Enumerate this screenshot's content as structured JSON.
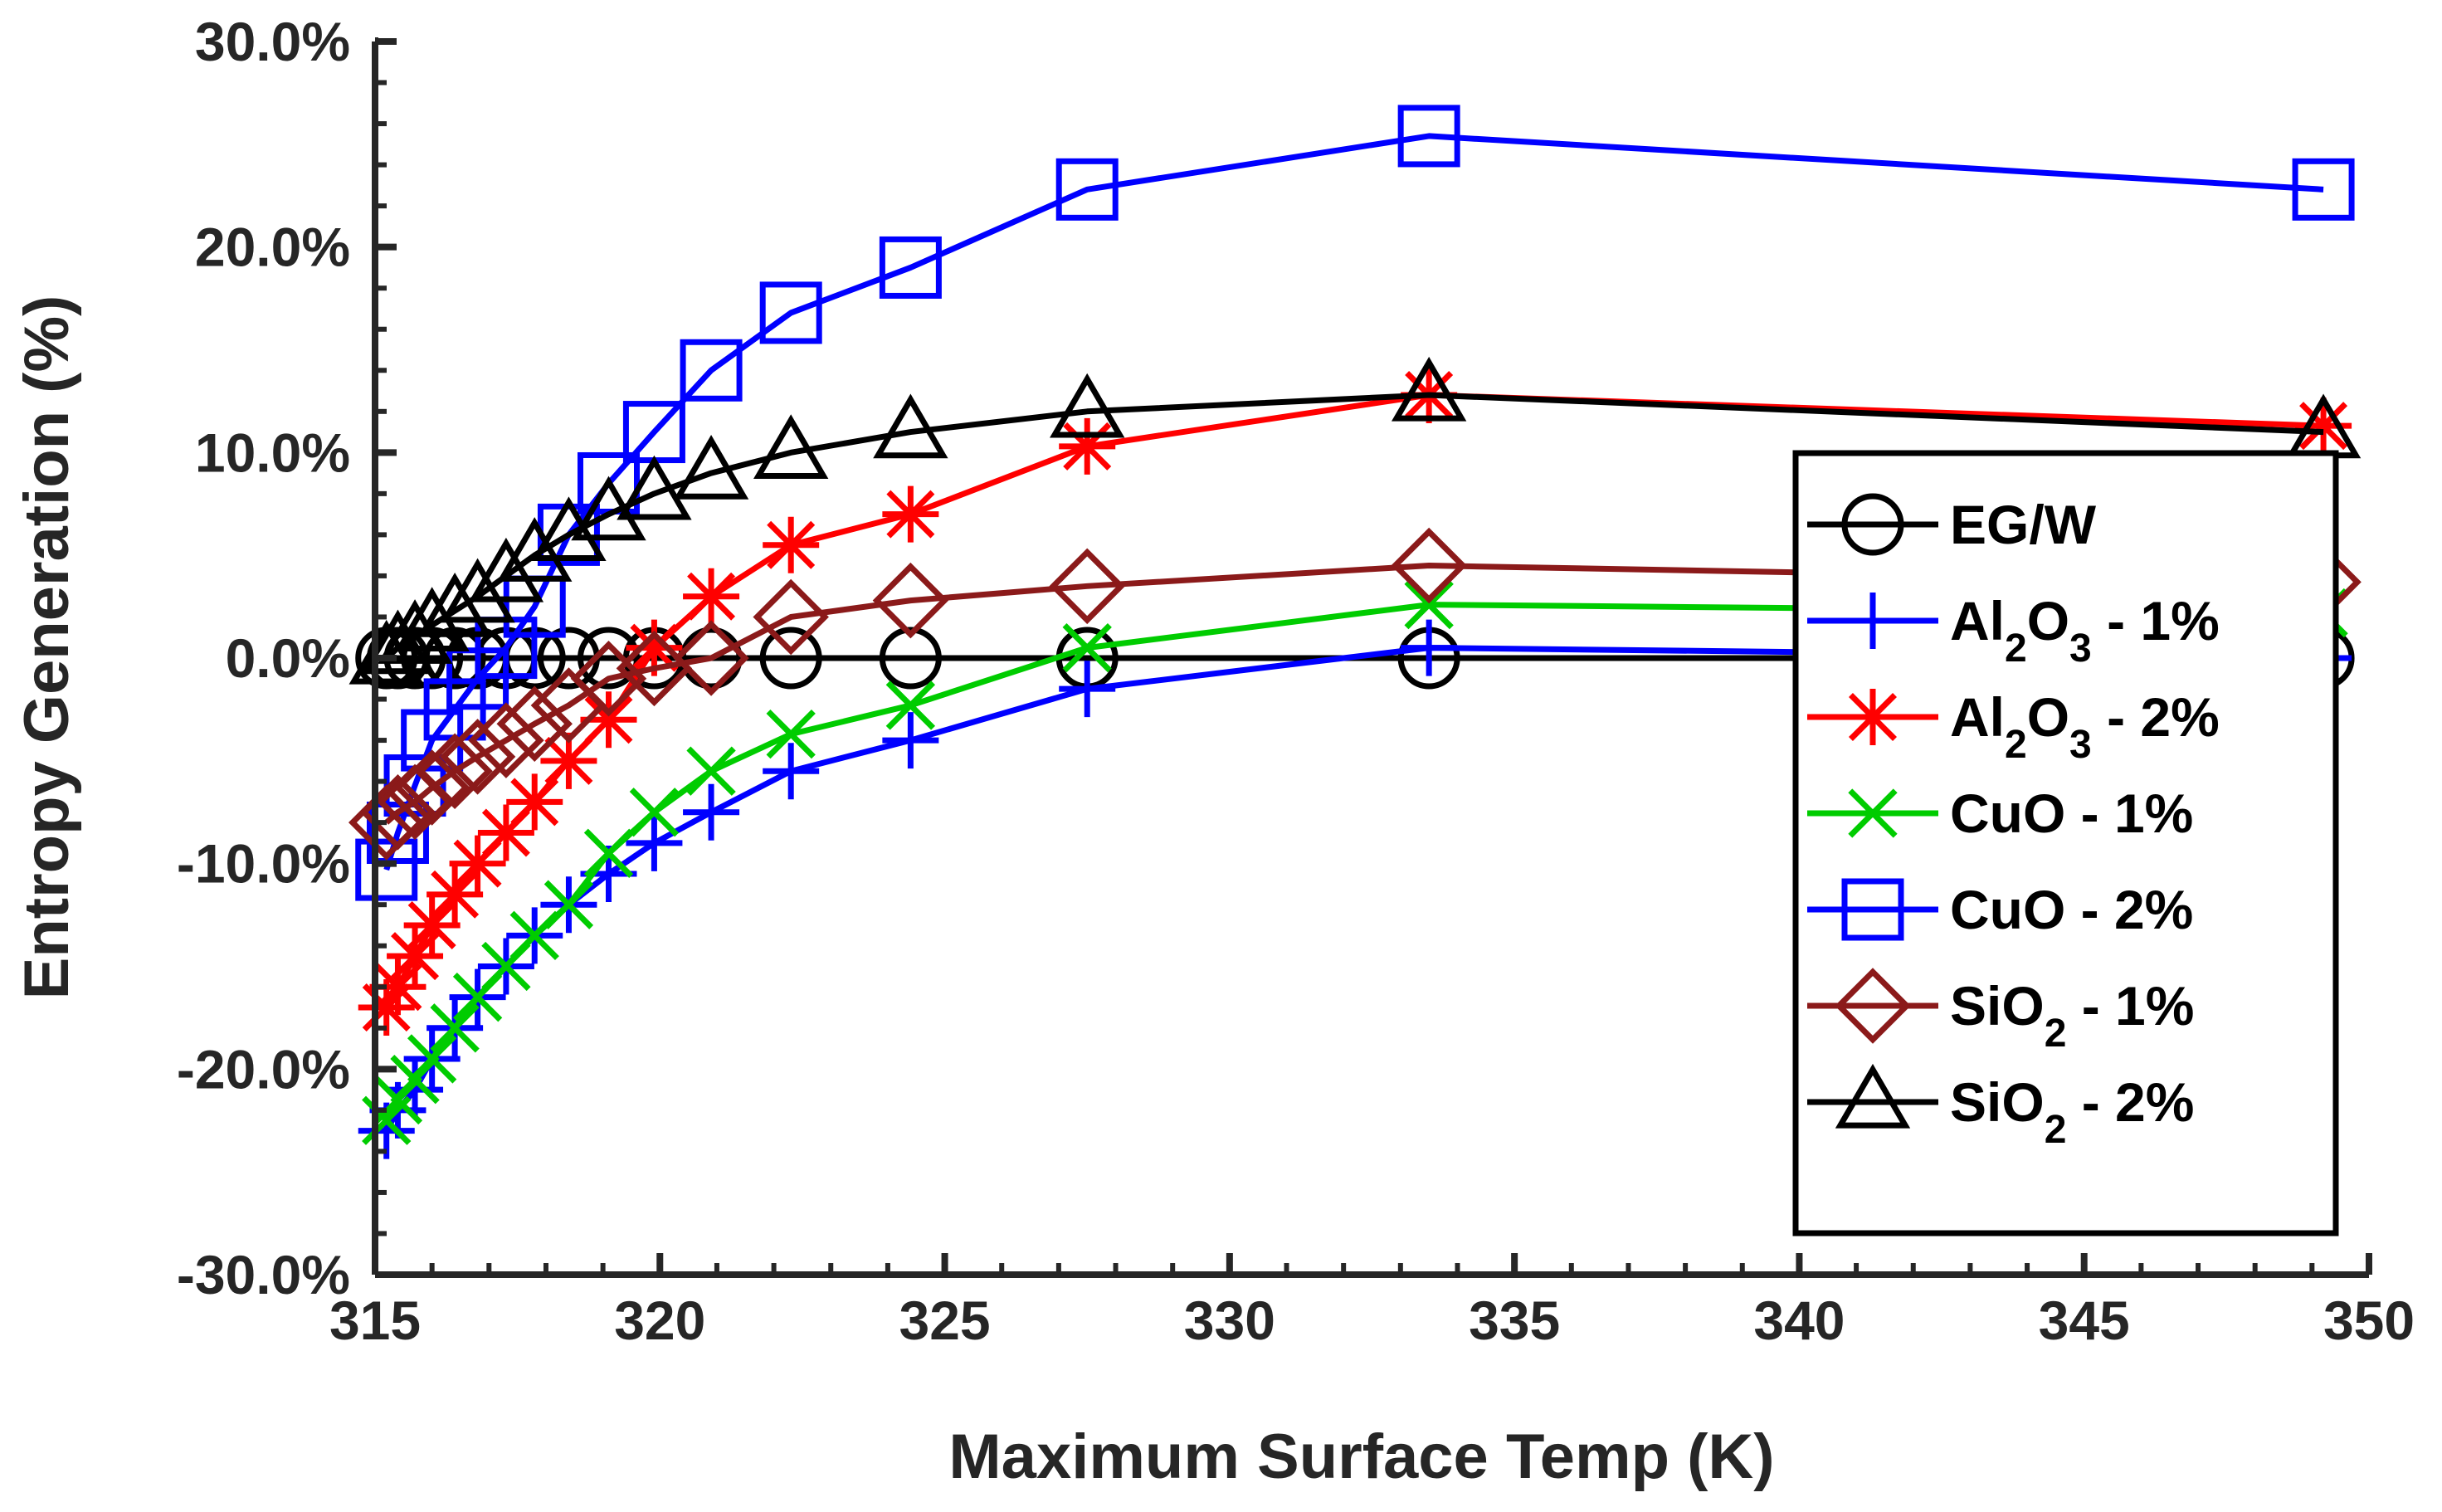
{
  "chart_data": {
    "type": "line",
    "title": "",
    "xlabel": "Maximum Surface Temp (K)",
    "ylabel": "Entropy Generation (%)",
    "xlim": [
      315,
      350
    ],
    "ylim": [
      -30,
      30
    ],
    "xticks": [
      315,
      320,
      325,
      330,
      335,
      340,
      345,
      350
    ],
    "yticks": [
      -30,
      -20,
      -10,
      0,
      10,
      20,
      30
    ],
    "xtick_labels": [
      "315",
      "320",
      "325",
      "330",
      "335",
      "340",
      "345",
      "350"
    ],
    "ytick_labels": [
      "-30.0%",
      "-20.0%",
      "-10.0%",
      "0.0%",
      "10.0%",
      "20.0%",
      "30.0%"
    ],
    "legend_position": "right",
    "grid": false,
    "series": [
      {
        "name": "EG/W",
        "label_main": "EG/W",
        "color": "#000000",
        "marker": "circle",
        "x": [
          315.2,
          315.4,
          315.7,
          316.0,
          316.4,
          316.8,
          317.3,
          317.8,
          318.4,
          319.1,
          319.9,
          320.9,
          322.3,
          324.4,
          327.5,
          333.5,
          349.2
        ],
        "y": [
          0,
          0,
          0,
          0,
          0,
          0,
          0,
          0,
          0,
          0,
          0,
          0,
          0,
          0,
          0,
          0,
          0
        ]
      },
      {
        "name": "Al2O3 - 1%",
        "label_main": "Al",
        "label_sub1": "2",
        "label_mid": "O",
        "label_sub2": "3",
        "label_tail": " - 1%",
        "color": "#0000ff",
        "marker": "plus",
        "x": [
          315.2,
          315.4,
          315.7,
          316.0,
          316.4,
          316.8,
          317.3,
          317.8,
          318.4,
          319.1,
          319.9,
          320.9,
          322.3,
          324.4,
          327.5,
          333.5,
          349.2
        ],
        "y": [
          -23,
          -22,
          -21,
          -19.5,
          -18,
          -16.5,
          -15,
          -13.5,
          -12,
          -10.5,
          -9,
          -7.5,
          -5.5,
          -4,
          -1.5,
          0.5,
          0
        ]
      },
      {
        "name": "Al2O3 - 2%",
        "label_main": "Al",
        "label_sub1": "2",
        "label_mid": "O",
        "label_sub2": "3",
        "label_tail": " - 2%",
        "color": "#ff0000",
        "marker": "asterisk",
        "x": [
          315.2,
          315.4,
          315.7,
          316.0,
          316.4,
          316.8,
          317.3,
          317.8,
          318.4,
          319.1,
          319.9,
          320.9,
          322.3,
          324.4,
          327.5,
          333.5,
          349.2
        ],
        "y": [
          -17,
          -16,
          -14.5,
          -13,
          -11.5,
          -10,
          -8.5,
          -7,
          -5,
          -3,
          0.5,
          3,
          5.5,
          7,
          10.3,
          12.8,
          11.3
        ]
      },
      {
        "name": "CuO - 1%",
        "label_main": "CuO - 1%",
        "color": "#00cc00",
        "marker": "x",
        "x": [
          315.2,
          315.4,
          315.7,
          316.0,
          316.4,
          316.8,
          317.3,
          317.8,
          318.4,
          319.1,
          319.9,
          320.9,
          322.3,
          324.4,
          327.5,
          333.5,
          349.2
        ],
        "y": [
          -22.5,
          -21.5,
          -20.5,
          -19.5,
          -18,
          -16.5,
          -15,
          -13.5,
          -12,
          -9.5,
          -7.5,
          -5.5,
          -3.7,
          -2.3,
          0.5,
          2.6,
          2.2
        ]
      },
      {
        "name": "CuO - 2%",
        "label_main": "CuO - 2%",
        "color": "#0000ff",
        "marker": "square",
        "x": [
          315.2,
          315.4,
          315.7,
          316.0,
          316.4,
          316.8,
          317.3,
          317.8,
          318.4,
          319.1,
          319.9,
          320.9,
          322.3,
          324.4,
          327.5,
          333.5,
          349.2
        ],
        "y": [
          -10.3,
          -8.5,
          -6.2,
          -4,
          -2.5,
          -1,
          0.5,
          2.5,
          6,
          8.5,
          11,
          14,
          16.8,
          19,
          22.8,
          25.4,
          22.8
        ]
      },
      {
        "name": "SiO2 - 1%",
        "label_main": "SiO",
        "label_sub1": "2",
        "label_tail": " - 1%",
        "color": "#8b1a1a",
        "marker": "diamond",
        "x": [
          315.2,
          315.4,
          315.7,
          316.0,
          316.4,
          316.8,
          317.3,
          317.8,
          318.4,
          319.1,
          319.9,
          320.9,
          322.3,
          324.4,
          327.5,
          333.5,
          349.2
        ],
        "y": [
          -8,
          -7.5,
          -7,
          -6.3,
          -5.5,
          -4.8,
          -4,
          -3.2,
          -2.3,
          -1,
          -0.5,
          0,
          2,
          2.8,
          3.5,
          4.5,
          3.7
        ]
      },
      {
        "name": "SiO2 - 2%",
        "label_main": "SiO",
        "label_sub1": "2",
        "label_tail": " - 2%",
        "color": "#000000",
        "marker": "triangle",
        "x": [
          315.2,
          315.4,
          315.7,
          316.0,
          316.4,
          316.8,
          317.3,
          317.8,
          318.4,
          319.1,
          319.9,
          320.9,
          322.3,
          324.4,
          327.5,
          333.5,
          349.2
        ],
        "y": [
          0,
          0.5,
          1,
          1.6,
          2.3,
          3,
          4,
          5,
          6,
          7,
          8,
          9,
          10,
          11,
          12,
          12.8,
          11
        ]
      }
    ]
  }
}
